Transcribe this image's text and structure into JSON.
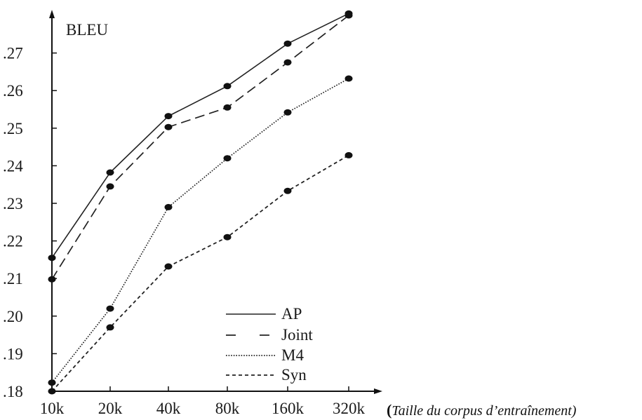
{
  "chart_data": {
    "type": "line",
    "ylabel": "BLEU",
    "xlabel": "",
    "categories": [
      "10k",
      "20k",
      "40k",
      "80k",
      "160k",
      "320k"
    ],
    "yticks": [
      ".18",
      ".19",
      ".20",
      ".21",
      ".22",
      ".23",
      ".24",
      ".25",
      ".26",
      ".27"
    ],
    "ylim": [
      0.18,
      0.28
    ],
    "grid": false,
    "legend_position": "bottom-right",
    "series": [
      {
        "name": "AP",
        "dash": "solid",
        "values": [
          0.2155,
          0.2382,
          0.2532,
          0.2612,
          0.2725,
          0.2805
        ]
      },
      {
        "name": "Joint",
        "dash": "longdash",
        "values": [
          0.2098,
          0.2345,
          0.2503,
          0.2555,
          0.2675,
          0.28
        ]
      },
      {
        "name": "M4",
        "dash": "dotted",
        "values": [
          0.1823,
          0.202,
          0.229,
          0.242,
          0.2542,
          0.2632
        ]
      },
      {
        "name": "Syn",
        "dash": "dashed",
        "values": [
          0.18,
          0.197,
          0.2132,
          0.221,
          0.2333,
          0.2428
        ]
      }
    ]
  },
  "caption": {
    "open_paren": "(",
    "text": "Taille du corpus d’entraînement)"
  }
}
